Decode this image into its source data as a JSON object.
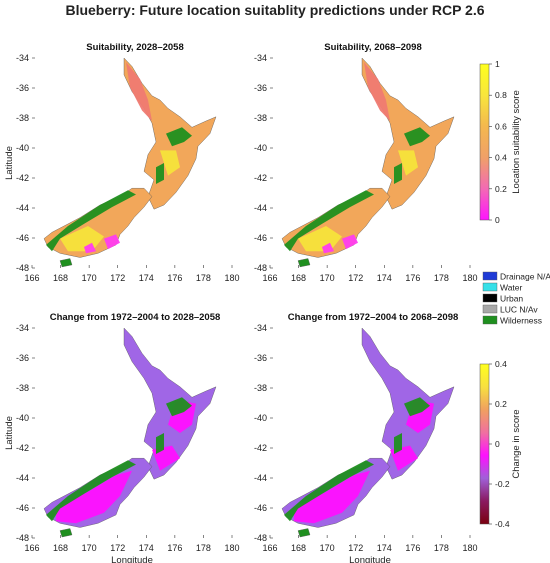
{
  "figure_title": "Blueberry: Future location suitablity predictions under RCP 2.6",
  "panels": [
    {
      "title": "Suitability, 2028–2058",
      "kind": "suitability"
    },
    {
      "title": "Suitability, 2068–2098",
      "kind": "suitability"
    },
    {
      "title": "Change from 1972–2004 to 2028–2058",
      "kind": "change"
    },
    {
      "title": "Change from 1972–2004 to 2068–2098",
      "kind": "change"
    }
  ],
  "axes": {
    "x_ticks": [
      "166",
      "168",
      "170",
      "172",
      "174",
      "176",
      "178",
      "180"
    ],
    "y_ticks": [
      "-34",
      "-36",
      "-38",
      "-40",
      "-42",
      "-44",
      "-46",
      "-48"
    ],
    "xlabel": "Longitude",
    "ylabel": "Latitude",
    "xlim": [
      166,
      180
    ],
    "ylim": [
      -48,
      -34
    ]
  },
  "legend": {
    "items": [
      {
        "label": "Drainage N/Av",
        "color": "#1f3bd6"
      },
      {
        "label": "Water",
        "color": "#36e0e8"
      },
      {
        "label": "Urban",
        "color": "#000000"
      },
      {
        "label": "LUC N/Av",
        "color": "#a8a8a8"
      },
      {
        "label": "Wilderness",
        "color": "#1f8f1f"
      }
    ]
  },
  "colorbars": {
    "suitability": {
      "label": "Location suitability score",
      "ticks": [
        "0",
        "0.2",
        "0.4",
        "0.6",
        "0.8",
        "1"
      ],
      "stops": [
        "#ff14ff",
        "#f36ab4",
        "#f0a068",
        "#f4b84e",
        "#f8e63c",
        "#ffff1e"
      ]
    },
    "change": {
      "label": "Change in score",
      "ticks": [
        "-0.4",
        "-0.2",
        "0",
        "0.2",
        "0.4"
      ],
      "stops": [
        "#7a0010",
        "#8a1a60",
        "#a060d8",
        "#ff10ff",
        "#f070a0",
        "#f0a060",
        "#f8e040",
        "#ffff1e"
      ]
    }
  },
  "colors": {
    "suit_base": "#f2a75a",
    "suit_high": "#f5e33b",
    "suit_red": "#ef7a72",
    "suit_pink": "#ff3cf0",
    "change_base": "#a066e6",
    "change_pink": "#ff10ff",
    "wilderness": "#1f8f1f"
  }
}
